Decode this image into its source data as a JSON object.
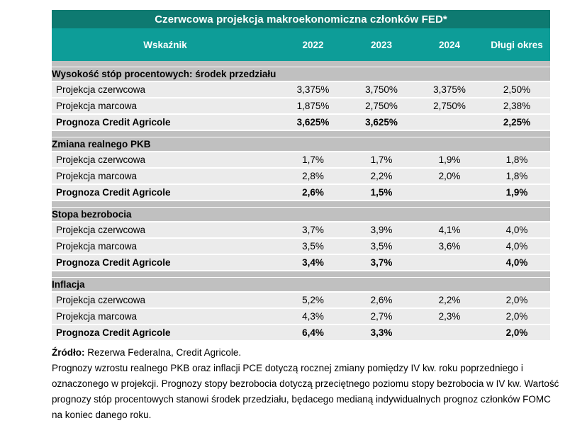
{
  "table": {
    "title": "Czerwcowa projekcja makroekonomiczna członków FED*",
    "columns": [
      "Wskaźnik",
      "2022",
      "2023",
      "2024",
      "Długi okres"
    ],
    "sections": [
      {
        "header": "Wysokość stóp procentowych: środek przedziału",
        "rows": [
          {
            "label": "Projekcja czerwcowa",
            "values": [
              "3,375%",
              "3,750%",
              "3,375%",
              "2,50%"
            ],
            "bold": false
          },
          {
            "label": "Projekcja marcowa",
            "values": [
              "1,875%",
              "2,750%",
              "2,750%",
              "2,38%"
            ],
            "bold": false
          },
          {
            "label": "Prognoza Credit Agricole",
            "values": [
              "3,625%",
              "3,625%",
              "",
              "2,25%"
            ],
            "bold": true
          }
        ]
      },
      {
        "header": "Zmiana realnego PKB",
        "rows": [
          {
            "label": "Projekcja czerwcowa",
            "values": [
              "1,7%",
              "1,7%",
              "1,9%",
              "1,8%"
            ],
            "bold": false
          },
          {
            "label": "Projekcja marcowa",
            "values": [
              "2,8%",
              "2,2%",
              "2,0%",
              "1,8%"
            ],
            "bold": false
          },
          {
            "label": "Prognoza Credit Agricole",
            "values": [
              "2,6%",
              "1,5%",
              "",
              "1,9%"
            ],
            "bold": true
          }
        ]
      },
      {
        "header": "Stopa bezrobocia",
        "rows": [
          {
            "label": "Projekcja czerwcowa",
            "values": [
              "3,7%",
              "3,9%",
              "4,1%",
              "4,0%"
            ],
            "bold": false
          },
          {
            "label": "Projekcja marcowa",
            "values": [
              "3,5%",
              "3,5%",
              "3,6%",
              "4,0%"
            ],
            "bold": false
          },
          {
            "label": "Prognoza Credit Agricole",
            "values": [
              "3,4%",
              "3,7%",
              "",
              "4,0%"
            ],
            "bold": true
          }
        ]
      },
      {
        "header": "Inflacja",
        "rows": [
          {
            "label": "Projekcja czerwcowa",
            "values": [
              "5,2%",
              "2,6%",
              "2,2%",
              "2,0%"
            ],
            "bold": false
          },
          {
            "label": "Projekcja marcowa",
            "values": [
              "4,3%",
              "2,7%",
              "2,3%",
              "2,0%"
            ],
            "bold": false
          },
          {
            "label": "Prognoza Credit Agricole",
            "values": [
              "6,4%",
              "3,3%",
              "",
              "2,0%"
            ],
            "bold": true
          }
        ]
      }
    ]
  },
  "footer": {
    "source_label": "Źródło:",
    "source_text": " Rezerwa Federalna, Credit Agricole.",
    "note": "Prognozy wzrostu realnego PKB oraz inflacji PCE dotyczą rocznej zmiany pomiędzy IV kw. roku poprzedniego i oznaczonego w projekcji. Prognozy stopy bezrobocia dotyczą przeciętnego poziomu stopy bezrobocia w IV kw. Wartość prognozy stóp procentowych stanowi środek przedziału, będacego medianą indywidualnych prognoz członków FOMC na koniec danego roku."
  },
  "colors": {
    "title_bar_teal": "#0e7a71",
    "header_row_teal": "#0d9d98",
    "section_header_gray": "#c0c0c0",
    "data_row_gray": "#ebebeb",
    "text_black": "#000000",
    "header_text_white": "#ffffff"
  }
}
